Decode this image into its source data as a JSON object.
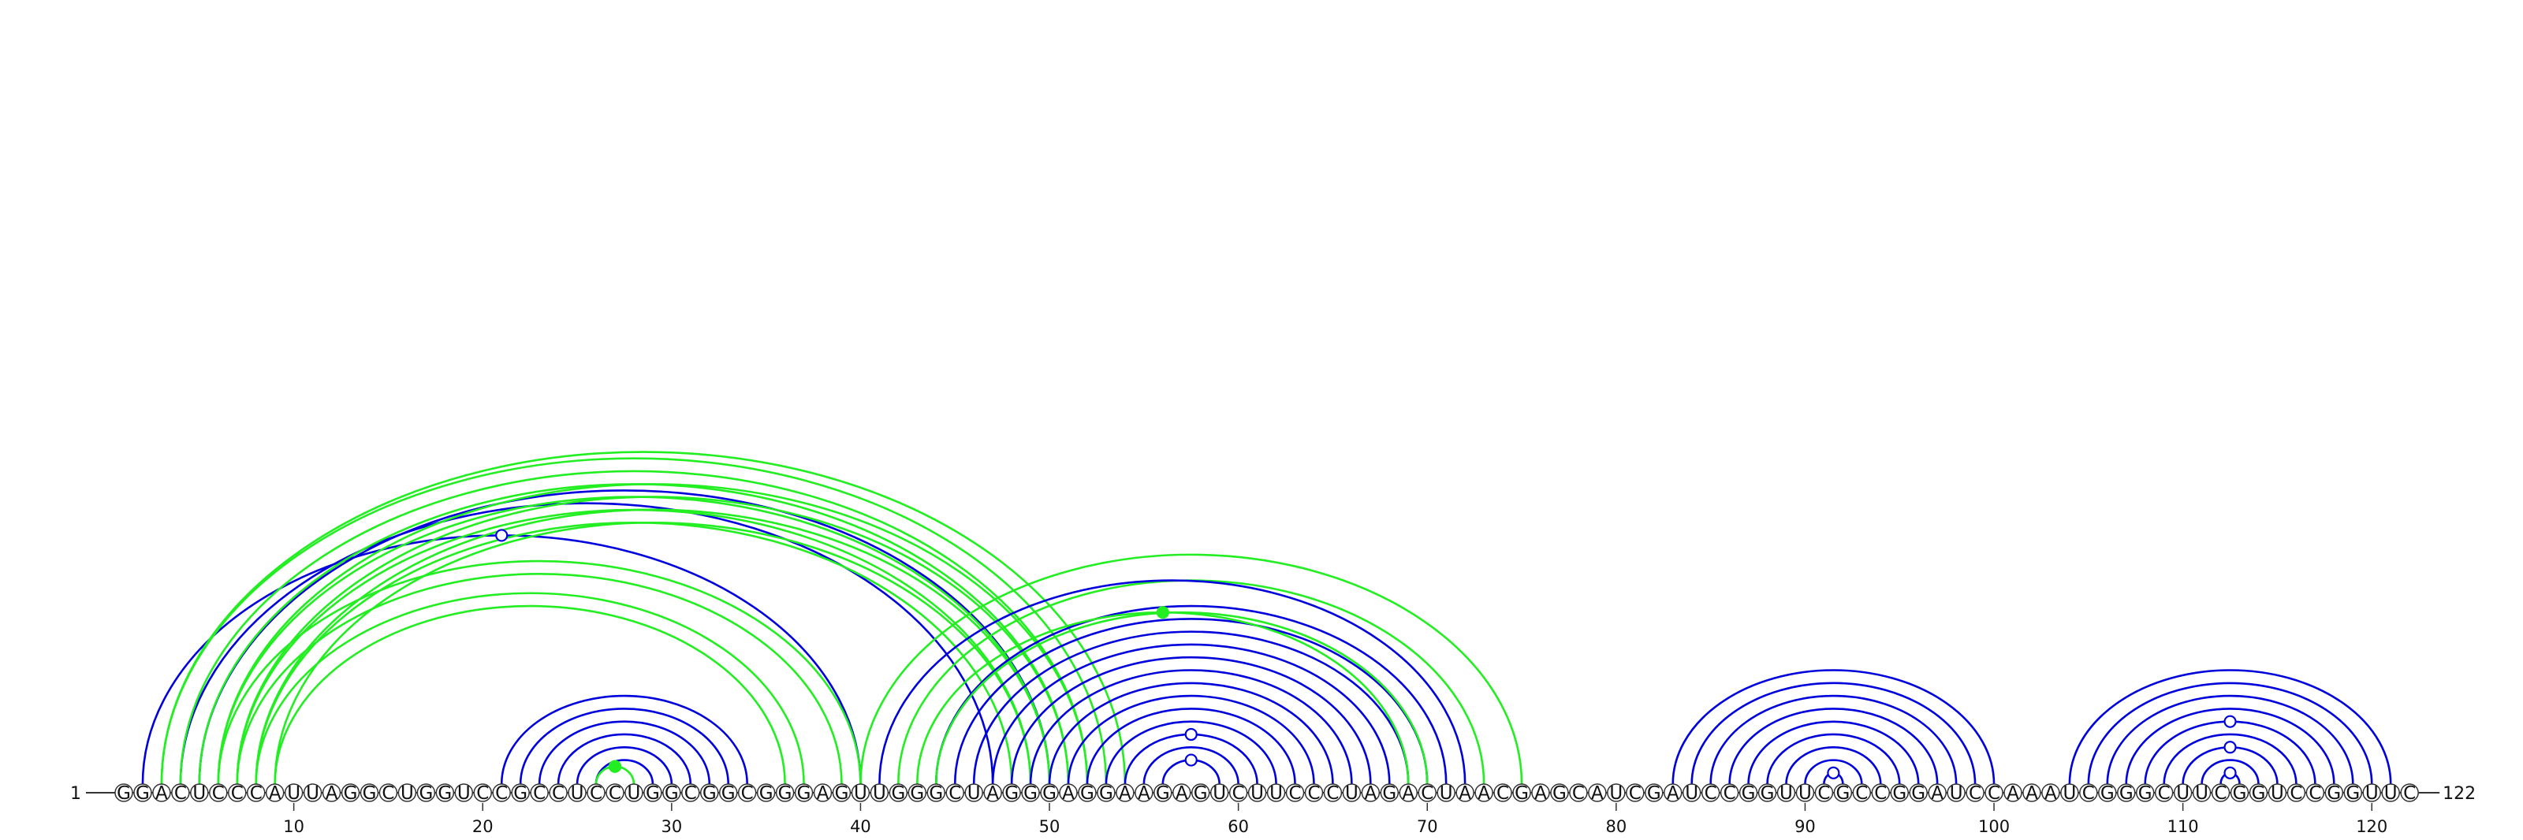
{
  "diagram": {
    "type": "rna-arc-diagram",
    "sequence": "GGACUCCCAUUAGGCUGGUCCGCCUCCUGGCGGCGGGAGUUGGGCUAGGGAGGAAGAGUCUUCCCUAGACUAACGAGCAUCGAUCCGGUUCGCCGGAUCCAAAUCGGGCUUCGGUCCGGUUC",
    "start_label": "1",
    "end_label": "122",
    "ticks": [
      10,
      20,
      30,
      40,
      50,
      60,
      70,
      80,
      90,
      100,
      110,
      120
    ],
    "colors": {
      "blue": "#0000dd",
      "green": "#22ee22",
      "line": "#333333"
    },
    "arc_groups": [
      {
        "color": "blue",
        "pairs": [
          [
            2,
            40
          ],
          [
            4,
            47
          ],
          [
            5,
            50
          ]
        ]
      },
      {
        "color": "green",
        "pairs": [
          [
            3,
            54
          ],
          [
            4,
            52
          ],
          [
            5,
            51
          ],
          [
            6,
            50
          ],
          [
            7,
            49
          ],
          [
            8,
            48
          ],
          [
            3,
            53
          ],
          [
            6,
            52
          ],
          [
            7,
            51
          ],
          [
            8,
            50
          ],
          [
            9,
            49
          ]
        ]
      },
      {
        "color": "green",
        "pairs": [
          [
            6,
            40
          ],
          [
            7,
            39
          ],
          [
            8,
            37
          ],
          [
            9,
            36
          ]
        ]
      },
      {
        "color": "blue",
        "pairs": [
          [
            21,
            34
          ],
          [
            22,
            33
          ],
          [
            23,
            32
          ],
          [
            24,
            31
          ],
          [
            25,
            30
          ],
          [
            26,
            29
          ]
        ]
      },
      {
        "color": "green",
        "pairs": [
          [
            26,
            28
          ]
        ]
      },
      {
        "color": "green",
        "pairs": [
          [
            40,
            75
          ],
          [
            42,
            73
          ]
        ]
      },
      {
        "color": "blue",
        "pairs": [
          [
            41,
            72
          ],
          [
            44,
            71
          ],
          [
            45,
            70
          ],
          [
            46,
            69
          ],
          [
            47,
            68
          ],
          [
            48,
            67
          ],
          [
            49,
            66
          ],
          [
            50,
            65
          ],
          [
            51,
            64
          ],
          [
            52,
            63
          ],
          [
            53,
            62
          ],
          [
            54,
            61
          ],
          [
            55,
            60
          ],
          [
            56,
            59
          ]
        ]
      },
      {
        "color": "green",
        "pairs": [
          [
            43,
            69
          ],
          [
            44,
            70
          ]
        ]
      },
      {
        "color": "blue",
        "pairs": [
          [
            83,
            100
          ],
          [
            84,
            99
          ],
          [
            85,
            98
          ],
          [
            86,
            97
          ],
          [
            87,
            96
          ],
          [
            88,
            95
          ],
          [
            89,
            94
          ],
          [
            90,
            93
          ],
          [
            91,
            92
          ]
        ]
      },
      {
        "color": "blue",
        "pairs": [
          [
            104,
            121
          ],
          [
            105,
            120
          ],
          [
            106,
            119
          ],
          [
            107,
            118
          ],
          [
            108,
            117
          ],
          [
            109,
            116
          ],
          [
            110,
            115
          ],
          [
            111,
            114
          ],
          [
            112,
            113
          ]
        ]
      }
    ],
    "markers": [
      {
        "pos": 26.8,
        "color": "green",
        "filled": true
      },
      {
        "pos": 20.5,
        "color": "blue",
        "filled": false
      },
      {
        "pos": 56.0,
        "color": "blue",
        "filled": false
      },
      {
        "pos": 56.0,
        "color": "green",
        "filled": true
      },
      {
        "pos": 56.0,
        "color": "blue",
        "filled": false
      },
      {
        "pos": 26.0,
        "color": "green",
        "filled": true
      },
      {
        "pos": 91.5,
        "color": "blue",
        "filled": false
      },
      {
        "pos": 112.5,
        "color": "blue",
        "filled": false
      },
      {
        "pos": 112.5,
        "color": "blue",
        "filled": false
      },
      {
        "pos": 112.5,
        "color": "blue",
        "filled": false
      }
    ]
  }
}
